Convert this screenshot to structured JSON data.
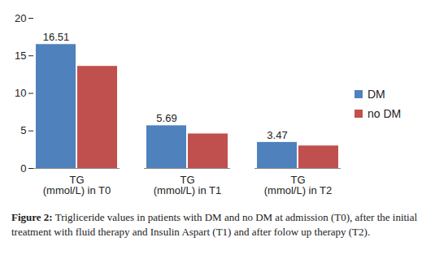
{
  "chart_data": {
    "type": "bar",
    "categories": [
      "TG (mmol/L) in T0",
      "TG (mmol/L) in T1",
      "TG (mmol/L) in T2"
    ],
    "series": [
      {
        "name": "DM",
        "color": "#4F81BD",
        "values": [
          16.51,
          5.69,
          3.47
        ],
        "data_labels": true
      },
      {
        "name": "no DM",
        "color": "#C0504D",
        "values": [
          13.6,
          4.6,
          3.0
        ],
        "data_labels": false
      }
    ],
    "ylim": [
      0,
      20
    ],
    "yticks": [
      0,
      5,
      10,
      15,
      20
    ],
    "grid": false,
    "legend": "right",
    "caption": "Figure 2: Trigliceride values in patients with DM and no DM at admission (T0), after the initial treatment with fluid therapy and Insulin Aspart (T1) and after folow up therapy (T2)."
  }
}
